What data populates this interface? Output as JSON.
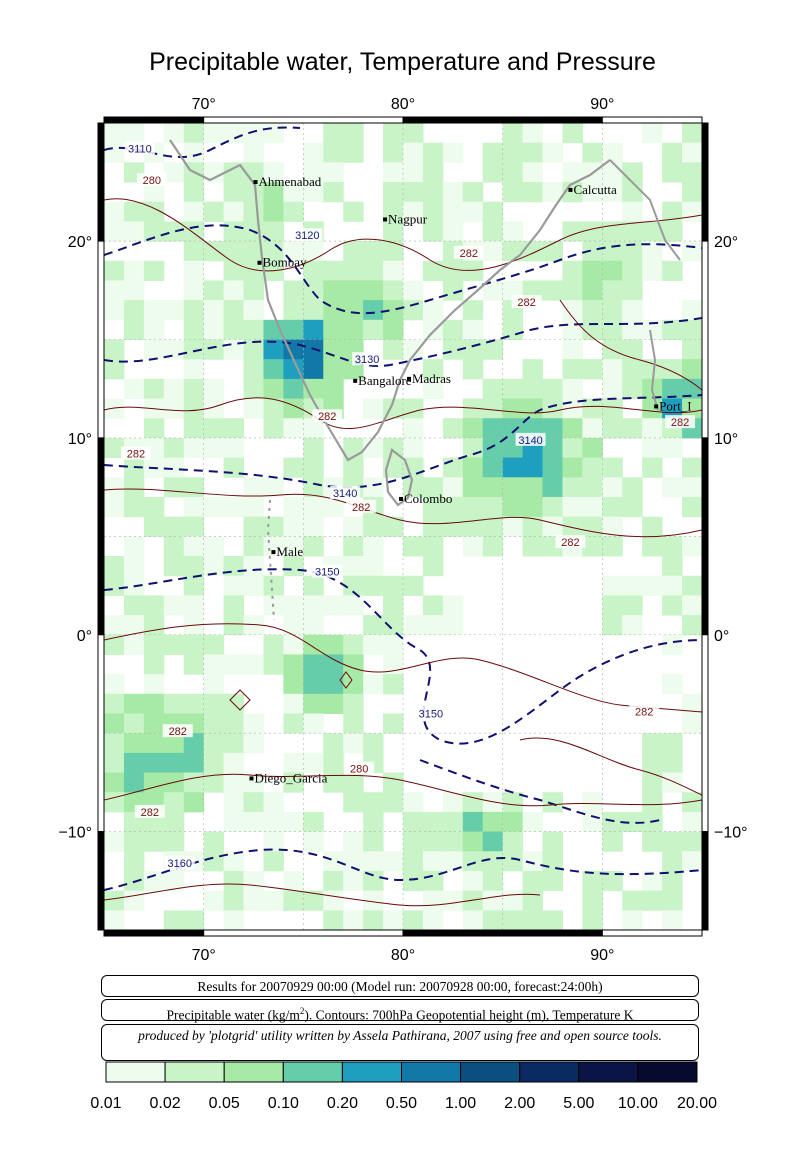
{
  "title": "Precipitable water, Temperature and Pressure",
  "map": {
    "lon_range": [
      65,
      95
    ],
    "lat_range": [
      -15,
      26
    ],
    "top_lon_labels": [
      "70°",
      "80°",
      "90°"
    ],
    "bottom_lon_labels": [
      "70°",
      "80°",
      "90°"
    ],
    "left_lat_labels": [
      "20°",
      "10°",
      "0°",
      "−10°"
    ],
    "right_lat_labels": [
      "20°",
      "10°",
      "0°",
      "−10°"
    ],
    "cities": [
      {
        "name": "Ahmenabad",
        "lon": 72.6,
        "lat": 23.0
      },
      {
        "name": "Calcutta",
        "lon": 88.4,
        "lat": 22.6
      },
      {
        "name": "Nagpur",
        "lon": 79.1,
        "lat": 21.1
      },
      {
        "name": "Bombay",
        "lon": 72.8,
        "lat": 18.9
      },
      {
        "name": "Bangalore",
        "lon": 77.6,
        "lat": 12.9
      },
      {
        "name": "Madras",
        "lon": 80.3,
        "lat": 13.0
      },
      {
        "name": "Port_I",
        "lon": 92.7,
        "lat": 11.6
      },
      {
        "name": "Colombo",
        "lon": 79.9,
        "lat": 6.9
      },
      {
        "name": "Male",
        "lon": 73.5,
        "lat": 4.2
      },
      {
        "name": "Diego_Garcia",
        "lon": 72.4,
        "lat": -7.3
      }
    ],
    "contour_labels": [
      {
        "text": "3110",
        "lon": 66.8,
        "lat": 24.6,
        "color": "#1a1a7a"
      },
      {
        "text": "280",
        "lon": 67.4,
        "lat": 23.0,
        "color": "#7a1010"
      },
      {
        "text": "3120",
        "lon": 75.2,
        "lat": 20.2,
        "color": "#1a1a7a"
      },
      {
        "text": "282",
        "lon": 83.3,
        "lat": 19.3,
        "color": "#7a1010"
      },
      {
        "text": "282",
        "lon": 86.2,
        "lat": 16.8,
        "color": "#7a1010"
      },
      {
        "text": "3130",
        "lon": 78.2,
        "lat": 13.9,
        "color": "#1a1a7a"
      },
      {
        "text": "282",
        "lon": 76.2,
        "lat": 11.0,
        "color": "#7a1010"
      },
      {
        "text": "282",
        "lon": 66.6,
        "lat": 9.1,
        "color": "#7a1010"
      },
      {
        "text": "3140",
        "lon": 86.4,
        "lat": 9.8,
        "color": "#1a1a7a"
      },
      {
        "text": "3140",
        "lon": 77.1,
        "lat": 7.1,
        "color": "#1a1a7a"
      },
      {
        "text": "282",
        "lon": 77.9,
        "lat": 6.4,
        "color": "#7a1010"
      },
      {
        "text": "282",
        "lon": 93.9,
        "lat": 10.7,
        "color": "#7a1010"
      },
      {
        "text": "282",
        "lon": 88.4,
        "lat": 4.6,
        "color": "#7a1010"
      },
      {
        "text": "3150",
        "lon": 76.2,
        "lat": 3.1,
        "color": "#1a1a7a"
      },
      {
        "text": "3150",
        "lon": 81.4,
        "lat": -4.1,
        "color": "#1a1a7a"
      },
      {
        "text": "282",
        "lon": 92.1,
        "lat": -4.0,
        "color": "#7a1010"
      },
      {
        "text": "282",
        "lon": 68.7,
        "lat": -5.0,
        "color": "#7a1010"
      },
      {
        "text": "280",
        "lon": 77.8,
        "lat": -6.9,
        "color": "#7a1010"
      },
      {
        "text": "282",
        "lon": 67.3,
        "lat": -9.1,
        "color": "#7a1010"
      },
      {
        "text": "3160",
        "lon": 68.8,
        "lat": -11.7,
        "color": "#1a1a7a"
      }
    ]
  },
  "info": {
    "results": "Results for 20070929 00:00 (Model run: 20070928 00:00, forecast:24:00h)",
    "legend_text_pre": "Precipitable water (kg/m",
    "legend_sup": "2",
    "legend_text_post": ").  Contours: 700hPa Geopotential height (m), Temperature K",
    "credit": "produced by 'plotgrid' utility written by Assela Pathirana, 2007 using free and open source tools."
  },
  "colorbar": {
    "labels": [
      "0.01",
      "0.02",
      "0.05",
      "0.10",
      "0.20",
      "0.50",
      "1.00",
      "2.00",
      "5.00",
      "10.00",
      "20.00"
    ],
    "colors": [
      "#eefcee",
      "#c8f4c8",
      "#a6eaa6",
      "#66cdaa",
      "#1e9fbf",
      "#1278a8",
      "#0b4f80",
      "#0a2a62",
      "#0a1446",
      "#050a2e",
      "#000010"
    ]
  }
}
